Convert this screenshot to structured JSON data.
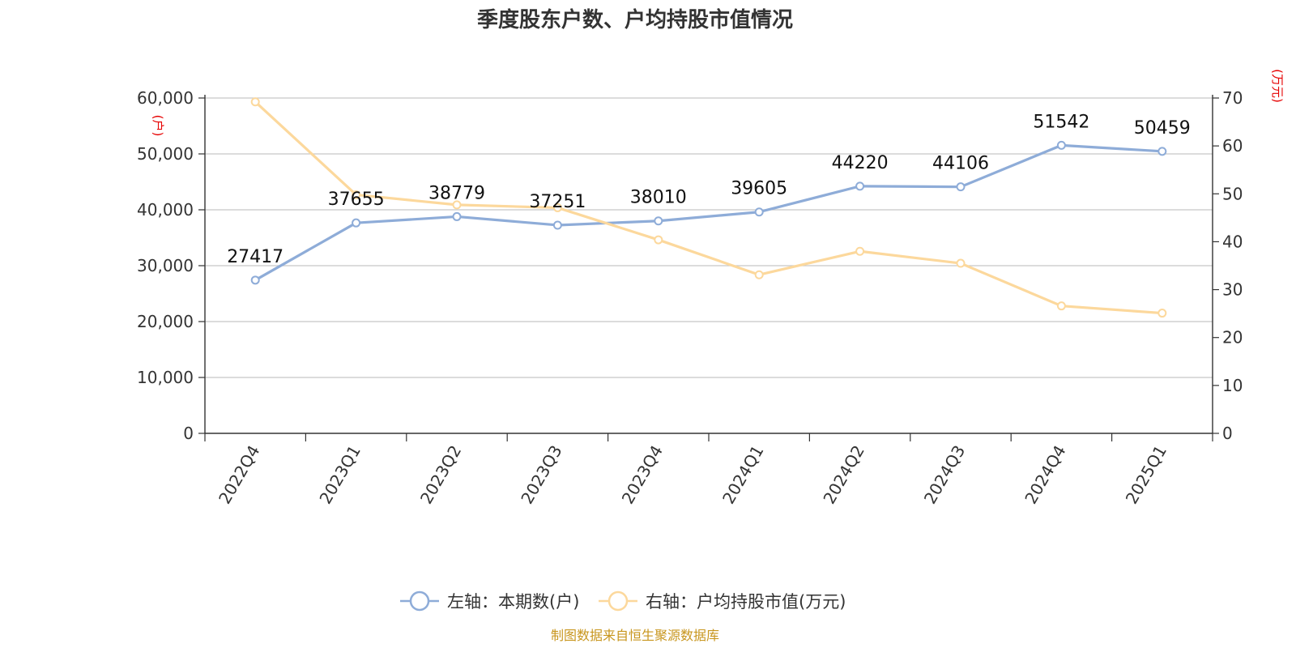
{
  "chart_data": {
    "type": "line",
    "title": "季度股东户数、户均持股市值情况",
    "categories": [
      "2022Q4",
      "2023Q1",
      "2023Q2",
      "2023Q3",
      "2023Q4",
      "2024Q1",
      "2024Q2",
      "2024Q3",
      "2024Q4",
      "2025Q1"
    ],
    "series": [
      {
        "name": "左轴：本期数(户)",
        "axis": "left",
        "color": "#8eacd8",
        "values": [
          27417,
          37655,
          38779,
          37251,
          38010,
          39605,
          44220,
          44106,
          51542,
          50459
        ],
        "data_labels": [
          "27417",
          "37655",
          "38779",
          "37251",
          "38010",
          "39605",
          "44220",
          "44106",
          "51542",
          "50459"
        ]
      },
      {
        "name": "右轴：户均持股市值(万元)",
        "axis": "right",
        "color": "#fcd89c",
        "values": [
          69.2,
          49.8,
          47.7,
          47.1,
          40.4,
          33.1,
          38.0,
          35.5,
          26.6,
          25.1
        ]
      }
    ],
    "y_left": {
      "unit": "(户)",
      "ylim": [
        0,
        60000
      ],
      "ticks": [
        0,
        10000,
        20000,
        30000,
        40000,
        50000,
        60000
      ],
      "tick_labels": [
        "0",
        "10,000",
        "20,000",
        "30,000",
        "40,000",
        "50,000",
        "60,000"
      ]
    },
    "y_right": {
      "unit": "(万元)",
      "ylim": [
        0,
        70
      ],
      "ticks": [
        0,
        10,
        20,
        30,
        40,
        50,
        60,
        70
      ],
      "tick_labels": [
        "0",
        "10",
        "20",
        "30",
        "40",
        "50",
        "60",
        "70"
      ]
    },
    "grid": true,
    "legend": "bottom-center",
    "unit_color": "#e60000"
  },
  "footer": {
    "source": "制图数据来自恒生聚源数据库"
  }
}
